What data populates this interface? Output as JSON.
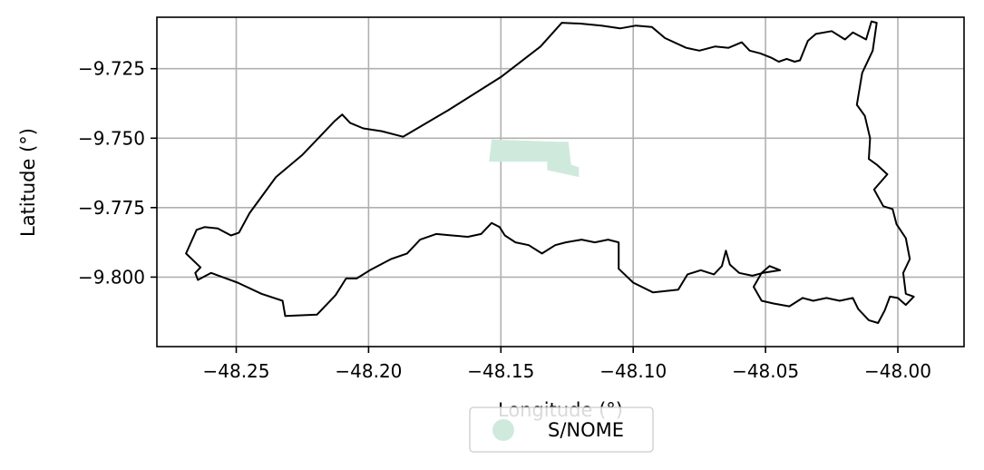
{
  "chart_data": {
    "type": "map",
    "xlabel": "Longitude (°)",
    "ylabel": "Latitude (°)",
    "xlim": [
      -48.28,
      -47.975
    ],
    "ylim": [
      -9.825,
      -9.7065
    ],
    "grid": true,
    "x_ticks": [
      -48.25,
      -48.2,
      -48.15,
      -48.1,
      -48.05,
      -48.0
    ],
    "x_tick_labels": [
      "−48.25",
      "−48.20",
      "−48.15",
      "−48.10",
      "−48.05",
      "−48.00"
    ],
    "y_ticks": [
      -9.725,
      -9.75,
      -9.775,
      -9.8
    ],
    "y_tick_labels": [
      "−9.725",
      "−9.750",
      "−9.775",
      "−9.800"
    ],
    "legend": {
      "placement": "bottom-center",
      "entries": [
        {
          "label": "S/NOME",
          "color": "#cfeadd",
          "marker": "circle"
        }
      ]
    },
    "boundary": {
      "stroke": "#000000",
      "coordinates": [
        [
          -48.269,
          -9.7915
        ],
        [
          -48.265,
          -9.783
        ],
        [
          -48.262,
          -9.782
        ],
        [
          -48.257,
          -9.7825
        ],
        [
          -48.252,
          -9.785
        ],
        [
          -48.249,
          -9.784
        ],
        [
          -48.245,
          -9.777
        ],
        [
          -48.235,
          -9.764
        ],
        [
          -48.225,
          -9.756
        ],
        [
          -48.219,
          -9.75
        ],
        [
          -48.213,
          -9.744
        ],
        [
          -48.21,
          -9.7415
        ],
        [
          -48.207,
          -9.7445
        ],
        [
          -48.202,
          -9.7465
        ],
        [
          -48.195,
          -9.7475
        ],
        [
          -48.187,
          -9.7495
        ],
        [
          -48.17,
          -9.74
        ],
        [
          -48.15,
          -9.728
        ],
        [
          -48.135,
          -9.717
        ],
        [
          -48.127,
          -9.7085
        ],
        [
          -48.12,
          -9.7088
        ],
        [
          -48.112,
          -9.7095
        ],
        [
          -48.105,
          -9.7105
        ],
        [
          -48.099,
          -9.7095
        ],
        [
          -48.093,
          -9.71
        ],
        [
          -48.088,
          -9.714
        ],
        [
          -48.08,
          -9.7175
        ],
        [
          -48.075,
          -9.7185
        ],
        [
          -48.069,
          -9.717
        ],
        [
          -48.064,
          -9.7175
        ],
        [
          -48.059,
          -9.7155
        ],
        [
          -48.056,
          -9.7185
        ],
        [
          -48.052,
          -9.7195
        ],
        [
          -48.048,
          -9.721
        ],
        [
          -48.045,
          -9.7225
        ],
        [
          -48.042,
          -9.7215
        ],
        [
          -48.039,
          -9.7225
        ],
        [
          -48.037,
          -9.722
        ],
        [
          -48.034,
          -9.715
        ],
        [
          -48.031,
          -9.7125
        ],
        [
          -48.025,
          -9.7115
        ],
        [
          -48.02,
          -9.7145
        ],
        [
          -48.017,
          -9.712
        ],
        [
          -48.012,
          -9.7145
        ],
        [
          -48.01,
          -9.708
        ],
        [
          -48.008,
          -9.7085
        ],
        [
          -48.0095,
          -9.7185
        ],
        [
          -48.0135,
          -9.7265
        ],
        [
          -48.0155,
          -9.738
        ],
        [
          -48.0125,
          -9.742
        ],
        [
          -48.0105,
          -9.75
        ],
        [
          -48.011,
          -9.7575
        ],
        [
          -48.008,
          -9.7595
        ],
        [
          -48.004,
          -9.763
        ],
        [
          -48.009,
          -9.7685
        ],
        [
          -48.0055,
          -9.7745
        ],
        [
          -48.002,
          -9.7755
        ],
        [
          -48.0005,
          -9.781
        ],
        [
          -47.997,
          -9.786
        ],
        [
          -47.9955,
          -9.7935
        ],
        [
          -47.998,
          -9.7985
        ],
        [
          -47.997,
          -9.806
        ],
        [
          -47.994,
          -9.807
        ],
        [
          -47.997,
          -9.81
        ],
        [
          -48.0,
          -9.8075
        ],
        [
          -48.003,
          -9.807
        ],
        [
          -48.005,
          -9.812
        ],
        [
          -48.0075,
          -9.8165
        ],
        [
          -48.011,
          -9.8155
        ],
        [
          -48.015,
          -9.8115
        ],
        [
          -48.017,
          -9.8075
        ],
        [
          -48.022,
          -9.8085
        ],
        [
          -48.027,
          -9.8075
        ],
        [
          -48.032,
          -9.8085
        ],
        [
          -48.036,
          -9.8075
        ],
        [
          -48.041,
          -9.8105
        ],
        [
          -48.047,
          -9.8095
        ],
        [
          -48.0515,
          -9.8085
        ],
        [
          -48.0545,
          -9.8035
        ],
        [
          -48.0515,
          -9.7985
        ],
        [
          -48.0485,
          -9.796
        ],
        [
          -48.0445,
          -9.7975
        ],
        [
          -48.051,
          -9.7985
        ],
        [
          -48.055,
          -9.7995
        ],
        [
          -48.06,
          -9.7985
        ],
        [
          -48.0635,
          -9.7955
        ],
        [
          -48.065,
          -9.7905
        ],
        [
          -48.0665,
          -9.796
        ],
        [
          -48.0695,
          -9.799
        ],
        [
          -48.0745,
          -9.7975
        ],
        [
          -48.0795,
          -9.799
        ],
        [
          -48.083,
          -9.8045
        ],
        [
          -48.0925,
          -9.8055
        ],
        [
          -48.1,
          -9.802
        ],
        [
          -48.1055,
          -9.797
        ],
        [
          -48.1055,
          -9.7875
        ],
        [
          -48.1095,
          -9.7865
        ],
        [
          -48.1145,
          -9.7875
        ],
        [
          -48.1195,
          -9.7865
        ],
        [
          -48.1255,
          -9.7875
        ],
        [
          -48.1295,
          -9.7885
        ],
        [
          -48.1345,
          -9.7915
        ],
        [
          -48.1395,
          -9.7885
        ],
        [
          -48.1445,
          -9.7875
        ],
        [
          -48.1485,
          -9.785
        ],
        [
          -48.1505,
          -9.782
        ],
        [
          -48.1535,
          -9.7805
        ],
        [
          -48.1575,
          -9.7845
        ],
        [
          -48.1625,
          -9.7855
        ],
        [
          -48.1685,
          -9.785
        ],
        [
          -48.1745,
          -9.7845
        ],
        [
          -48.1805,
          -9.7865
        ],
        [
          -48.1855,
          -9.7915
        ],
        [
          -48.1915,
          -9.7935
        ],
        [
          -48.1995,
          -9.7975
        ],
        [
          -48.2045,
          -9.8005
        ],
        [
          -48.2085,
          -9.8005
        ],
        [
          -48.2125,
          -9.8065
        ],
        [
          -48.2195,
          -9.8135
        ],
        [
          -48.2315,
          -9.814
        ],
        [
          -48.2325,
          -9.8085
        ],
        [
          -48.2405,
          -9.806
        ],
        [
          -48.2495,
          -9.802
        ],
        [
          -48.2595,
          -9.7985
        ],
        [
          -48.2645,
          -9.801
        ],
        [
          -48.2655,
          -9.7985
        ],
        [
          -48.2635,
          -9.7965
        ],
        [
          -48.269,
          -9.7915
        ]
      ]
    },
    "series": [
      {
        "name": "S/NOME",
        "color": "#cfeadd",
        "polygon": [
          [
            -48.1535,
            -9.7505
          ],
          [
            -48.1285,
            -9.7513
          ],
          [
            -48.1245,
            -9.7513
          ],
          [
            -48.1235,
            -9.7595
          ],
          [
            -48.1205,
            -9.7605
          ],
          [
            -48.1205,
            -9.764
          ],
          [
            -48.1325,
            -9.7615
          ],
          [
            -48.1325,
            -9.7585
          ],
          [
            -48.1545,
            -9.7585
          ]
        ]
      }
    ]
  }
}
